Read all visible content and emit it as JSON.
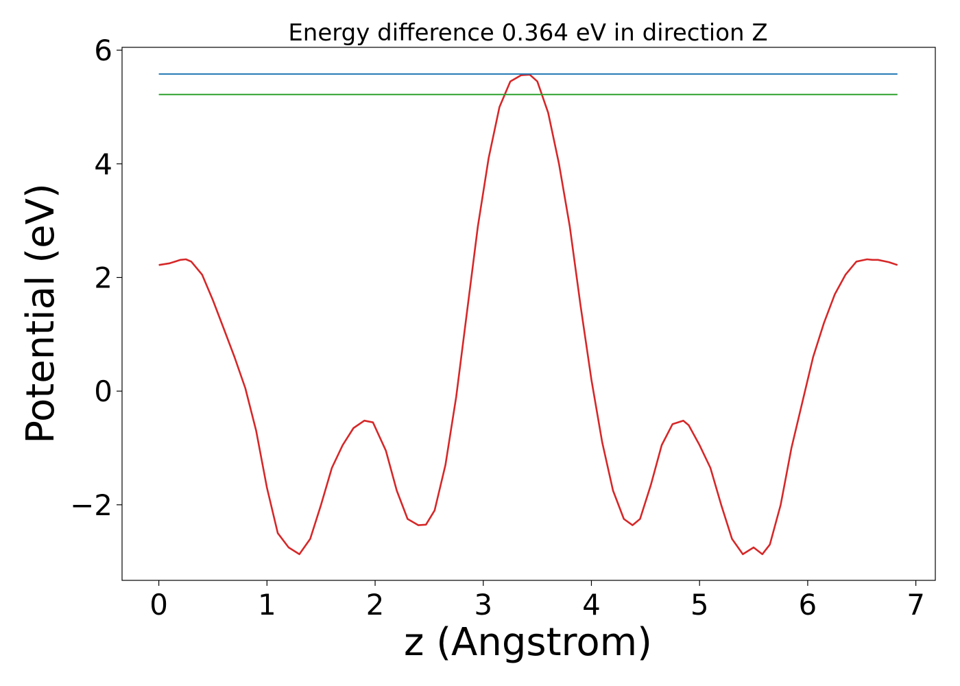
{
  "chart_data": {
    "type": "line",
    "title": "Energy difference 0.364 eV in direction Z",
    "xlabel": "z (Angstrom)",
    "ylabel": "Potential (eV)",
    "xlim": [
      -0.34,
      7.18
    ],
    "ylim": [
      -3.33,
      6.05
    ],
    "xticks": [
      0,
      1,
      2,
      3,
      4,
      5,
      6,
      7
    ],
    "xtick_labels": [
      "0",
      "1",
      "2",
      "3",
      "4",
      "5",
      "6",
      "7"
    ],
    "yticks": [
      -2,
      0,
      2,
      4,
      6
    ],
    "ytick_labels": [
      "−2",
      "0",
      "2",
      "4",
      "6"
    ],
    "grid": false,
    "series": [
      {
        "color": "#d62728",
        "x": [
          0.0,
          0.1,
          0.2,
          0.25,
          0.3,
          0.4,
          0.5,
          0.6,
          0.7,
          0.8,
          0.9,
          1.0,
          1.1,
          1.2,
          1.3,
          1.4,
          1.5,
          1.6,
          1.7,
          1.8,
          1.9,
          1.98,
          2.1,
          2.2,
          2.3,
          2.4,
          2.47,
          2.55,
          2.65,
          2.75,
          2.85,
          2.95,
          3.05,
          3.15,
          3.25,
          3.35,
          3.43,
          3.5,
          3.6,
          3.7,
          3.8,
          3.9,
          4.0,
          4.1,
          4.2,
          4.3,
          4.38,
          4.45,
          4.55,
          4.65,
          4.75,
          4.85,
          4.9,
          5.0,
          5.1,
          5.2,
          5.3,
          5.4,
          5.5,
          5.58,
          5.65,
          5.75,
          5.85,
          5.95,
          6.05,
          6.15,
          6.25,
          6.35,
          6.45,
          6.55,
          6.6,
          6.65,
          6.75,
          6.83
        ],
        "y": [
          2.22,
          2.25,
          2.31,
          2.32,
          2.28,
          2.05,
          1.6,
          1.1,
          0.6,
          0.05,
          -0.7,
          -1.7,
          -2.5,
          -2.75,
          -2.87,
          -2.6,
          -2.0,
          -1.35,
          -0.95,
          -0.65,
          -0.52,
          -0.55,
          -1.05,
          -1.75,
          -2.25,
          -2.36,
          -2.35,
          -2.1,
          -1.3,
          -0.1,
          1.4,
          2.9,
          4.1,
          5.0,
          5.45,
          5.56,
          5.57,
          5.45,
          4.9,
          4.0,
          2.9,
          1.5,
          0.2,
          -0.9,
          -1.75,
          -2.25,
          -2.36,
          -2.25,
          -1.65,
          -0.95,
          -0.58,
          -0.52,
          -0.6,
          -0.95,
          -1.35,
          -2.0,
          -2.6,
          -2.87,
          -2.75,
          -2.87,
          -2.7,
          -2.0,
          -1.0,
          -0.2,
          0.6,
          1.2,
          1.7,
          2.05,
          2.28,
          2.32,
          2.31,
          2.31,
          2.27,
          2.22
        ]
      },
      {
        "color": "#1f77b4",
        "x": [
          0.0,
          6.83
        ],
        "y": [
          5.58,
          5.58
        ]
      },
      {
        "color": "#2ca02c",
        "x": [
          0.0,
          6.83
        ],
        "y": [
          5.22,
          5.22
        ]
      }
    ]
  }
}
